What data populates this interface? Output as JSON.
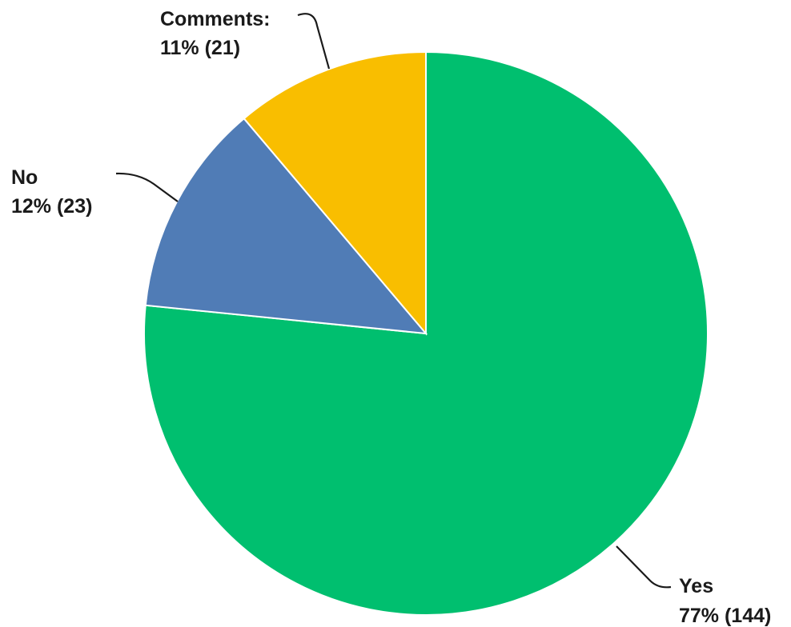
{
  "chart_data": {
    "type": "pie",
    "start_angle_deg": 0,
    "direction": "clockwise",
    "slices": [
      {
        "label": "Yes",
        "value_text": "77% (144)",
        "percent": 77,
        "count": 144,
        "color": "#00BF6F"
      },
      {
        "label": "No",
        "value_text": "12% (23)",
        "percent": 12,
        "count": 23,
        "color": "#507CB6"
      },
      {
        "label": "Comments:",
        "value_text": "11% (21)",
        "percent": 11,
        "count": 21,
        "color": "#F9BE00"
      }
    ]
  }
}
